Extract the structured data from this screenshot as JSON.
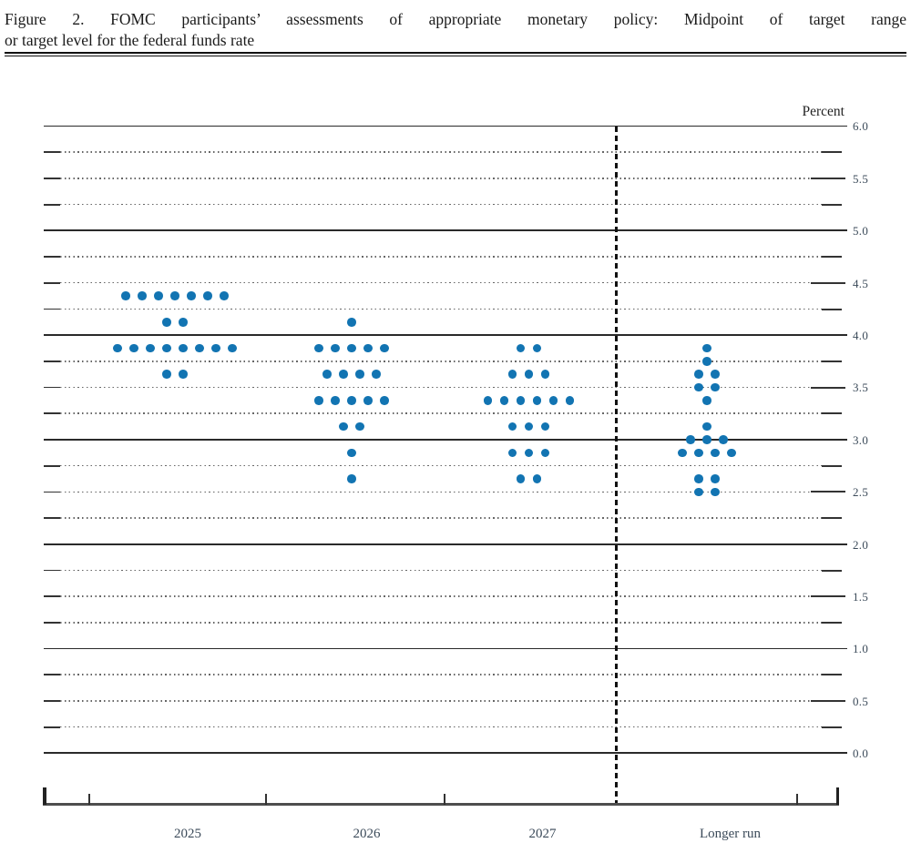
{
  "header": {
    "title_line1": "Figure 2.  FOMC participants’ assessments of appropriate monetary policy:  Midpoint of target range",
    "title_line2": "or target level for the federal funds rate"
  },
  "chart_data": {
    "type": "scatter",
    "subtype": "fomc-dot-plot",
    "title": "Figure 2. FOMC participants’ assessments of appropriate monetary policy: Midpoint of target range or target level for the federal funds rate",
    "ylabel": "Percent",
    "xlabel": "",
    "ylim": [
      0.0,
      6.0
    ],
    "gridline_step": 0.25,
    "solid_gridlines_at_whole_percents": true,
    "y_tick_label_step": 0.5,
    "y_tick_labels": [
      "6.0",
      "5.5",
      "5.0",
      "4.5",
      "4.0",
      "3.5",
      "3.0",
      "2.5",
      "2.0",
      "1.5",
      "1.0",
      "0.5",
      "0.0"
    ],
    "categories": [
      "2025",
      "2026",
      "2027",
      "Longer run"
    ],
    "series": [
      {
        "category": "2025",
        "dots": [
          {
            "rate": 4.375,
            "count": 7
          },
          {
            "rate": 4.125,
            "count": 2
          },
          {
            "rate": 3.875,
            "count": 8
          },
          {
            "rate": 3.625,
            "count": 2
          }
        ]
      },
      {
        "category": "2026",
        "dots": [
          {
            "rate": 4.125,
            "count": 1
          },
          {
            "rate": 3.875,
            "count": 5
          },
          {
            "rate": 3.625,
            "count": 4
          },
          {
            "rate": 3.375,
            "count": 5
          },
          {
            "rate": 3.125,
            "count": 2
          },
          {
            "rate": 2.875,
            "count": 1
          },
          {
            "rate": 2.625,
            "count": 1
          }
        ]
      },
      {
        "category": "2027",
        "dots": [
          {
            "rate": 3.875,
            "count": 2
          },
          {
            "rate": 3.625,
            "count": 3
          },
          {
            "rate": 3.375,
            "count": 6
          },
          {
            "rate": 3.125,
            "count": 3
          },
          {
            "rate": 2.875,
            "count": 3
          },
          {
            "rate": 2.625,
            "count": 2
          }
        ]
      },
      {
        "category": "Longer run",
        "dots": [
          {
            "rate": 3.875,
            "count": 1
          },
          {
            "rate": 3.75,
            "count": 1
          },
          {
            "rate": 3.625,
            "count": 2
          },
          {
            "rate": 3.5,
            "count": 2
          },
          {
            "rate": 3.375,
            "count": 1
          },
          {
            "rate": 3.125,
            "count": 1
          },
          {
            "rate": 3.0,
            "count": 3
          },
          {
            "rate": 2.875,
            "count": 4
          },
          {
            "rate": 2.625,
            "count": 2
          },
          {
            "rate": 2.5,
            "count": 2
          }
        ]
      }
    ],
    "separator": {
      "description": "vertical dashed line between 2027 and Longer run"
    },
    "colors": {
      "dot": "#1274b2",
      "solid_grid": "#2a2a2a",
      "dotted_grid": "#666666",
      "grid_end_dash": "#333333",
      "axis": "#4d4d4d",
      "tick_label_text": "#3b4a59",
      "title_text": "#1a1a1a",
      "separator": "#111111"
    },
    "legend": "none",
    "grid": "on"
  }
}
